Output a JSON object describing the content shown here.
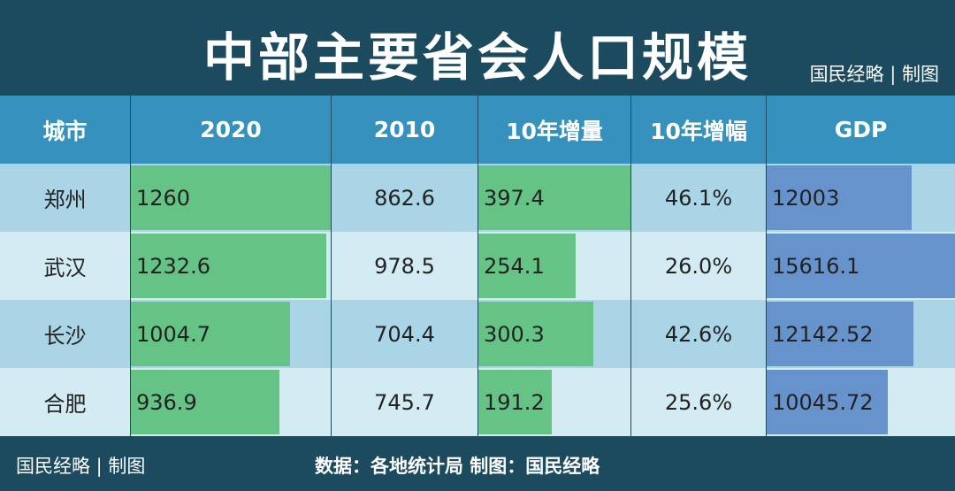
{
  "title": "中部主要省会人口规模",
  "brand": "国民经略 | 制图",
  "source": "数据：各地统计局 制图：国民经略",
  "colors": {
    "header": "#3692bc",
    "row_odd": "#a9d5e6",
    "row_even": "#d3ebf3",
    "bar_green": "#65c385",
    "bar_blue": "#6793cc",
    "dark": "#1c4a5e"
  },
  "chart_data": {
    "type": "table",
    "title": "中部主要省会人口规模",
    "columns": [
      "城市",
      "2020",
      "2010",
      "10年增量",
      "10年增幅",
      "GDP"
    ],
    "rows": [
      [
        "郑州",
        "1260",
        "862.6",
        "397.4",
        "46.1%",
        "12003"
      ],
      [
        "武汉",
        "1232.6",
        "978.5",
        "254.1",
        "26.0%",
        "15616.1"
      ],
      [
        "长沙",
        "1004.7",
        "704.4",
        "300.3",
        "42.6%",
        "12142.52"
      ],
      [
        "合肥",
        "936.9",
        "745.7",
        "191.2",
        "25.6%",
        "10045.72"
      ]
    ],
    "bar_columns": {
      "1": "green",
      "3": "green",
      "5": "blue"
    }
  }
}
